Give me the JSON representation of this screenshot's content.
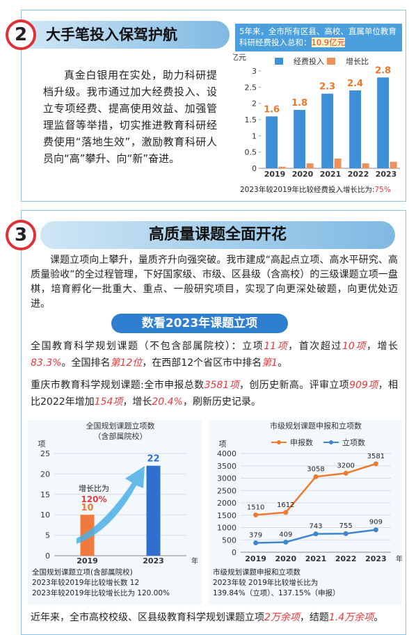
{
  "section2": {
    "number": "2",
    "title": "大手笔投入保驾护航",
    "body": "真金白银用在实处，助力科研提档升级。我市通过加大经费投入、设立专项经费、提高使用效益、加强管理监督等举措，切实推进教育科研经费使用“落地生效”，激励教育科研人员向“高”攀升、向“新”奋进。"
  },
  "section3": {
    "number": "3",
    "title": "高质量课题全面开花",
    "body": "课题立项向上攀升，量质齐升向强突破。我市建成“高起点立项、高水平研究、高质量验收”的全过程管理，下好国家级、市级、区县级（含高校）的三级课题立项一盘棋，培育孵化一批重大、重点、一般研究项目，实现了向更深处破题，向更优处迈进。",
    "banner": "数看2023年课题立项",
    "stats": [
      {
        "runs": [
          {
            "text": "全国教育科学规划课题（不包含部属院校）：立项",
            "highlight": false
          },
          {
            "text": "11项",
            "highlight": true
          },
          {
            "text": "，首次超过",
            "highlight": false
          },
          {
            "text": "10项",
            "highlight": true
          },
          {
            "text": "，增长",
            "highlight": false
          },
          {
            "text": "83.3%",
            "highlight": true
          },
          {
            "text": "。全国排名",
            "highlight": false
          },
          {
            "text": "第12位",
            "highlight": true
          },
          {
            "text": "，在西部12个省区市中排名",
            "highlight": false
          },
          {
            "text": "第1",
            "highlight": true
          },
          {
            "text": "。",
            "highlight": false
          }
        ]
      },
      {
        "runs": [
          {
            "text": "重庆市教育科学规划课题:全市申报总数",
            "highlight": false
          },
          {
            "text": "3581项",
            "highlight": true
          },
          {
            "text": "，创历史新高。评审立项",
            "highlight": false
          },
          {
            "text": "909项",
            "highlight": true
          },
          {
            "text": "，相比2022年增加",
            "highlight": false
          },
          {
            "text": "154项",
            "highlight": true
          },
          {
            "text": "，增长",
            "highlight": false
          },
          {
            "text": "20.4%",
            "highlight": true
          },
          {
            "text": "，刷新历史记录。",
            "highlight": false
          }
        ]
      }
    ],
    "footer": {
      "runs": [
        {
          "text": "近年来，全市高校校级、区县级教育科学规划课题立项",
          "highlight": false
        },
        {
          "text": "2万余项",
          "highlight": true
        },
        {
          "text": "，结题",
          "highlight": false
        },
        {
          "text": "1.4万余项",
          "highlight": true
        },
        {
          "text": "。",
          "highlight": false
        }
      ]
    }
  },
  "chart_data": [
    {
      "type": "bar",
      "title": "5年来，全市所有区县、高校、直属单位教育科研经费投入总和：",
      "title_highlight": "10.9亿元",
      "y_label": "亿元",
      "categories": [
        "2019",
        "2020",
        "2021",
        "2022",
        "2023"
      ],
      "series": [
        {
          "name": "经费投入",
          "color": "#3f8fd8",
          "values": [
            1.6,
            1.8,
            2.3,
            2.4,
            2.8
          ],
          "show_labels": true,
          "label_color": "#e8762d"
        },
        {
          "name": "增长比",
          "color": "#f0905a",
          "values": [
            0.05,
            0.15,
            0.3,
            0.15,
            0.2
          ],
          "show_labels": false
        }
      ],
      "ylim": [
        0,
        3
      ],
      "yticks": [
        0,
        0.5,
        1,
        1.5,
        2,
        2.5,
        3
      ],
      "grid": false,
      "note": "2023年较2019年比较经费投入增长比为:",
      "note_highlight": "75%"
    },
    {
      "type": "bar",
      "title": "全国规划课题立项数",
      "subtitle": "（含部属院校）",
      "y_label": "项",
      "x_unit": "年",
      "categories": [
        "2019",
        "2023"
      ],
      "values": [
        10,
        22
      ],
      "colors": [
        "#f07a3c",
        "#2f6fd0"
      ],
      "ylim": [
        0,
        25
      ],
      "yticks": [
        0,
        5,
        10,
        15,
        20,
        25
      ],
      "grid": true,
      "annotation": "增长比为",
      "annotation_value": "120%",
      "captions": [
        "全国规划课题立项(含部属院校)",
        "2023年较2019年比较增长数 12",
        "2023年较2019年比较增长比为 120.00%"
      ]
    },
    {
      "type": "line",
      "title": "市级规划课题申报和立项数",
      "y_label": "项",
      "x_unit": "年",
      "categories": [
        "2019",
        "2020",
        "2021",
        "2022",
        "2023"
      ],
      "series": [
        {
          "name": "申报数",
          "color": "#ec7a30",
          "values": [
            1510,
            1612,
            3058,
            3200,
            3581
          ]
        },
        {
          "name": "立项数",
          "color": "#3f86cc",
          "values": [
            379,
            409,
            743,
            755,
            909
          ]
        }
      ],
      "ylim": [
        0,
        4000
      ],
      "yticks": [
        0,
        500,
        1000,
        1500,
        2000,
        2500,
        3000,
        3500,
        4000
      ],
      "grid": true,
      "captions": [
        "市级规划课题申报和立项数",
        "2023年较 2019年比较增长比为",
        "139.84%（立项）、137.15%（申报）"
      ]
    }
  ]
}
